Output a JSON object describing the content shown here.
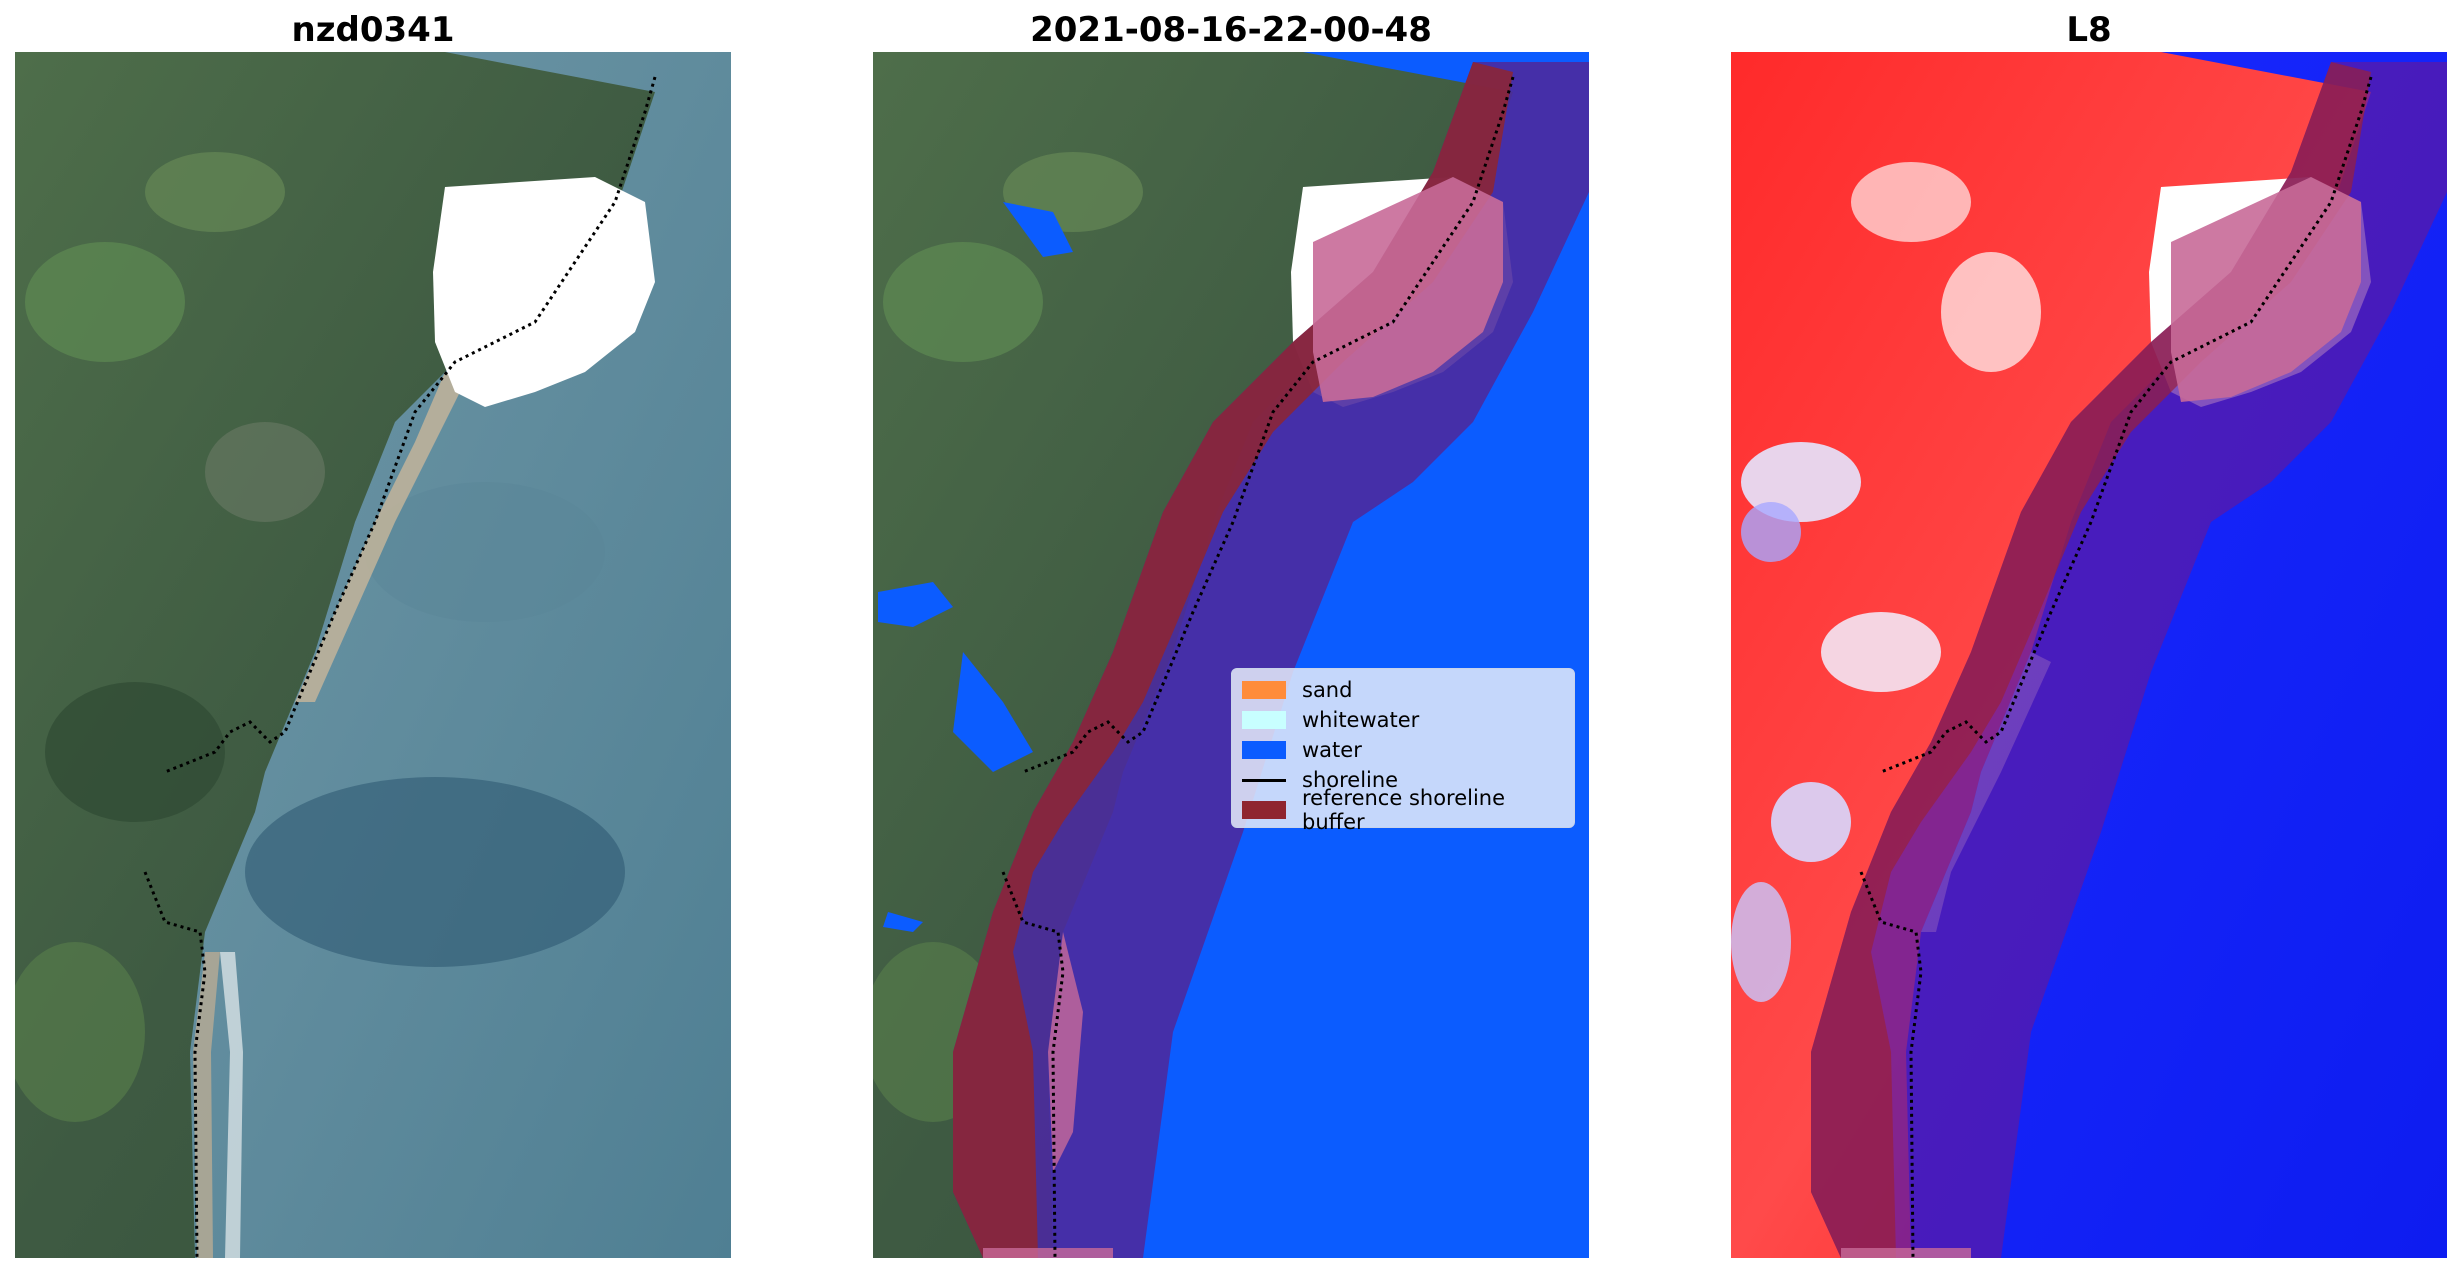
{
  "panels": {
    "left": {
      "title": "nzd0341"
    },
    "middle": {
      "title": "2021-08-16-22-00-48"
    },
    "right": {
      "title": "L8"
    }
  },
  "legend": {
    "items": [
      {
        "label": "sand",
        "color": "#ff8c3a"
      },
      {
        "label": "whitewater",
        "color": "#c8ffff"
      },
      {
        "label": "water",
        "color": "#0b5cff"
      },
      {
        "label": "shoreline",
        "color": "#000000"
      },
      {
        "label": "reference shoreline buffer",
        "color": "#8f2530"
      }
    ]
  }
}
